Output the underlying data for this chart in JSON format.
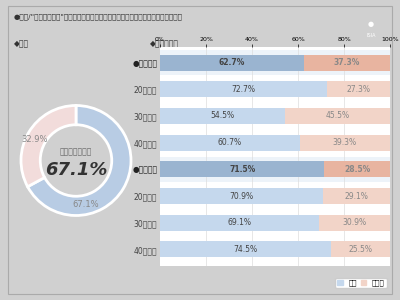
{
  "title": "●質問/\"シルバー世代\"に近づくにつれ、「体毛は徐々に薄くなる」と思いますか？",
  "subtitle_left": "◆全体",
  "subtitle_right": "◆男女世代別",
  "donut_yes": 67.1,
  "donut_no": 32.9,
  "donut_center_label": "薄くなると思う",
  "donut_center_value": "67.1%",
  "donut_yes_label": "67.1%",
  "donut_no_label": "32.9%",
  "donut_yes_color": "#b8cce4",
  "donut_no_color": "#f2dcdb",
  "bar_categories": [
    "●男性全体",
    "20代男性",
    "30代男性",
    "40代男性",
    "●女性全体",
    "20代女性",
    "30代女性",
    "40代女性"
  ],
  "bar_yes": [
    62.7,
    72.7,
    54.5,
    60.7,
    71.5,
    70.9,
    69.1,
    74.5
  ],
  "bar_no": [
    37.3,
    27.3,
    45.5,
    39.3,
    28.5,
    29.1,
    30.9,
    25.5
  ],
  "bar_yes_color_bold": "#9ab4d0",
  "bar_no_color_bold": "#e8b4a0",
  "bar_yes_color_light": "#c5d8ed",
  "bar_no_color_light": "#f2d4c8",
  "bold_rows": [
    0,
    4
  ],
  "legend_yes": "はい",
  "legend_no": "いいえ",
  "outer_bg": "#d0d0d0",
  "panel_bg": "#ffffff"
}
